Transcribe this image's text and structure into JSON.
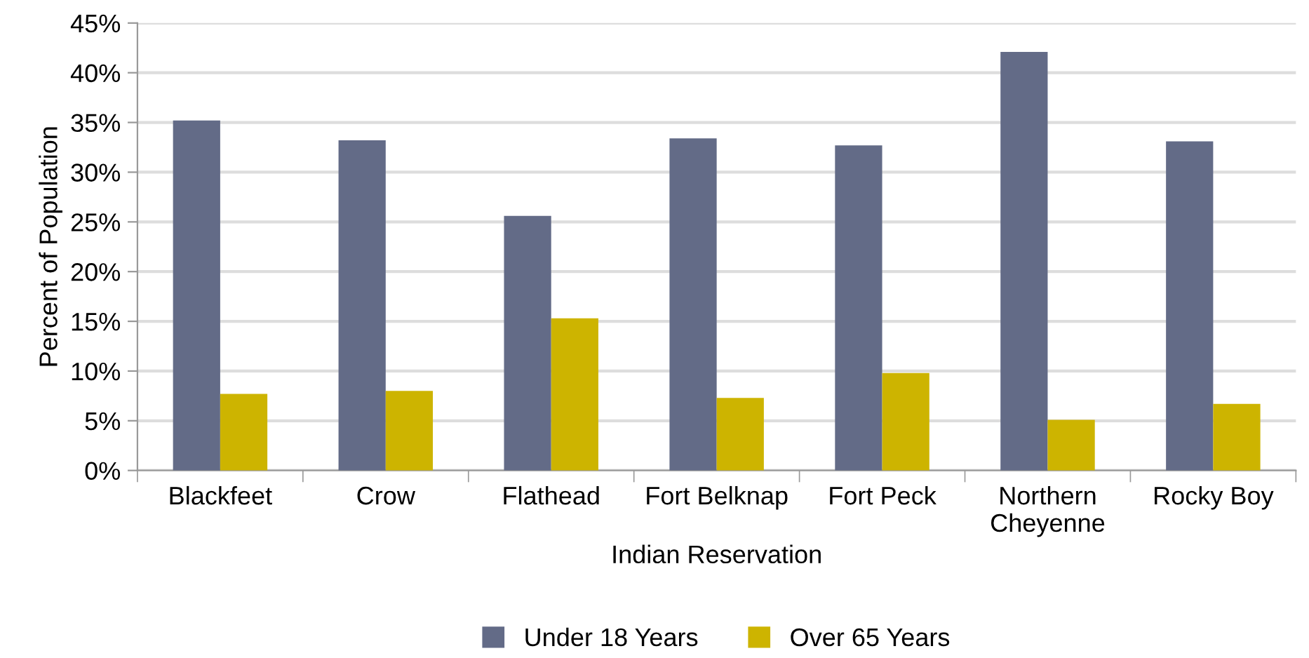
{
  "chart_data": {
    "type": "bar",
    "xlabel": "Indian Reservation",
    "ylabel": "Percent of Population",
    "categories": [
      "Blackfeet",
      "Crow",
      "Flathead",
      "Fort Belknap",
      "Fort Peck",
      "Northern\nCheyenne",
      "Rocky Boy"
    ],
    "series": [
      {
        "name": "Under 18 Years",
        "color": "#636b87",
        "values": [
          35.2,
          33.2,
          25.6,
          33.4,
          32.7,
          42.1,
          33.1
        ]
      },
      {
        "name": "Over 65 Years",
        "color": "#cdb400",
        "values": [
          7.7,
          8.0,
          15.3,
          7.3,
          9.8,
          5.1,
          6.7
        ]
      }
    ],
    "ylim": [
      0,
      45
    ],
    "yticks": [
      {
        "value": 0,
        "label": "0%"
      },
      {
        "value": 5,
        "label": "5%"
      },
      {
        "value": 10,
        "label": "10%"
      },
      {
        "value": 15,
        "label": "15%"
      },
      {
        "value": 20,
        "label": "20%"
      },
      {
        "value": 25,
        "label": "25%"
      },
      {
        "value": 30,
        "label": "30%"
      },
      {
        "value": 35,
        "label": "35%"
      },
      {
        "value": 40,
        "label": "40%"
      },
      {
        "value": 45,
        "label": "45%"
      }
    ],
    "grid": "y",
    "legend": "bottom"
  }
}
